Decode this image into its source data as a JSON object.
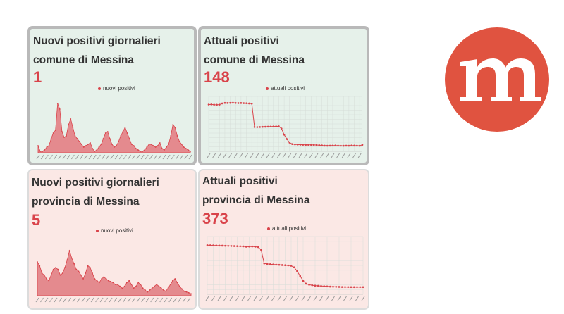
{
  "cards": [
    {
      "id": "daily-city",
      "title_line1": "Nuovi positivi giornalieri",
      "title_line2": "comune di Messina",
      "value": "1",
      "legend": "nuovi positivi",
      "chart_data": {
        "type": "area",
        "series": [
          {
            "name": "nuovi positivi",
            "values": [
              5,
              1,
              1,
              2,
              4,
              5,
              10,
              14,
              16,
              35,
              31,
              15,
              11,
              12,
              20,
              24,
              18,
              12,
              10,
              8,
              6,
              4,
              5,
              6,
              7,
              3,
              1,
              2,
              4,
              6,
              10,
              14,
              15,
              10,
              6,
              4,
              5,
              8,
              12,
              15,
              18,
              14,
              10,
              6,
              5,
              3,
              2,
              1,
              1,
              2,
              4,
              6,
              6,
              5,
              4,
              5,
              7,
              3,
              2,
              4,
              6,
              12,
              20,
              18,
              12,
              8,
              6,
              4,
              3,
              2,
              1
            ]
          }
        ],
        "ylim": [
          0,
          40
        ],
        "grid": false
      }
    },
    {
      "id": "current-city",
      "title_line1": "Attuali positivi",
      "title_line2": "comune di Messina",
      "value": "148",
      "legend": "attuali positivi",
      "chart_data": {
        "type": "line",
        "series": [
          {
            "name": "attuali positivi",
            "values": [
              1065,
              1068,
              1062,
              1060,
              1063,
              1090,
              1102,
              1100,
              1103,
              1106,
              1101,
              1098,
              1100,
              1097,
              1095,
              1090,
              1085,
              555,
              552,
              555,
              558,
              560,
              563,
              565,
              566,
              568,
              570,
              520,
              380,
              280,
              200,
              165,
              158,
              155,
              152,
              150,
              149,
              148,
              148,
              147,
              145,
              140,
              135,
              130,
              128,
              130,
              132,
              133,
              130,
              128,
              127,
              130,
              128,
              133,
              131,
              130,
              127,
              148
            ]
          }
        ],
        "ylim": [
          0,
          1250
        ],
        "grid": true
      }
    },
    {
      "id": "daily-province",
      "title_line1": "Nuovi positivi giornalieri",
      "title_line2": "provincia di Messina",
      "value": "5",
      "legend": "nuovi positivi",
      "chart_data": {
        "type": "area",
        "series": [
          {
            "name": "nuovi positivi",
            "values": [
              90,
              80,
              60,
              55,
              45,
              40,
              55,
              70,
              75,
              70,
              55,
              60,
              75,
              95,
              120,
              100,
              85,
              70,
              65,
              55,
              45,
              60,
              80,
              75,
              60,
              45,
              40,
              35,
              45,
              50,
              45,
              40,
              38,
              35,
              30,
              30,
              25,
              20,
              25,
              35,
              40,
              30,
              20,
              25,
              35,
              30,
              20,
              15,
              10,
              15,
              20,
              25,
              30,
              25,
              20,
              15,
              12,
              20,
              30,
              40,
              45,
              35,
              25,
              18,
              12,
              10,
              8,
              5
            ]
          }
        ],
        "ylim": [
          0,
          150
        ],
        "grid": false
      }
    },
    {
      "id": "current-province",
      "title_line1": "Attuali positivi",
      "title_line2": "provincia di Messina",
      "value": "373",
      "legend": "attuali positivi",
      "chart_data": {
        "type": "line",
        "series": [
          {
            "name": "attuali positivi",
            "values": [
              2550,
              2545,
              2540,
              2535,
              2530,
              2525,
              2520,
              2515,
              2510,
              2505,
              2500,
              2495,
              2490,
              2470,
              2480,
              2485,
              2470,
              2450,
              2300,
              1600,
              1580,
              1560,
              1550,
              1540,
              1530,
              1520,
              1510,
              1500,
              1480,
              1400,
              1200,
              950,
              700,
              550,
              500,
              470,
              450,
              440,
              430,
              420,
              410,
              400,
              395,
              390,
              385,
              380,
              378,
              376,
              375,
              374,
              373,
              373,
              373
            ]
          }
        ],
        "ylim": [
          0,
          3000
        ],
        "grid": true
      }
    }
  ],
  "logo": {
    "letter": "m",
    "color": "#e05340"
  },
  "colors": {
    "accent": "#d9434a",
    "area_fill": "#e48a8e",
    "grid": "#d6ddd8"
  }
}
